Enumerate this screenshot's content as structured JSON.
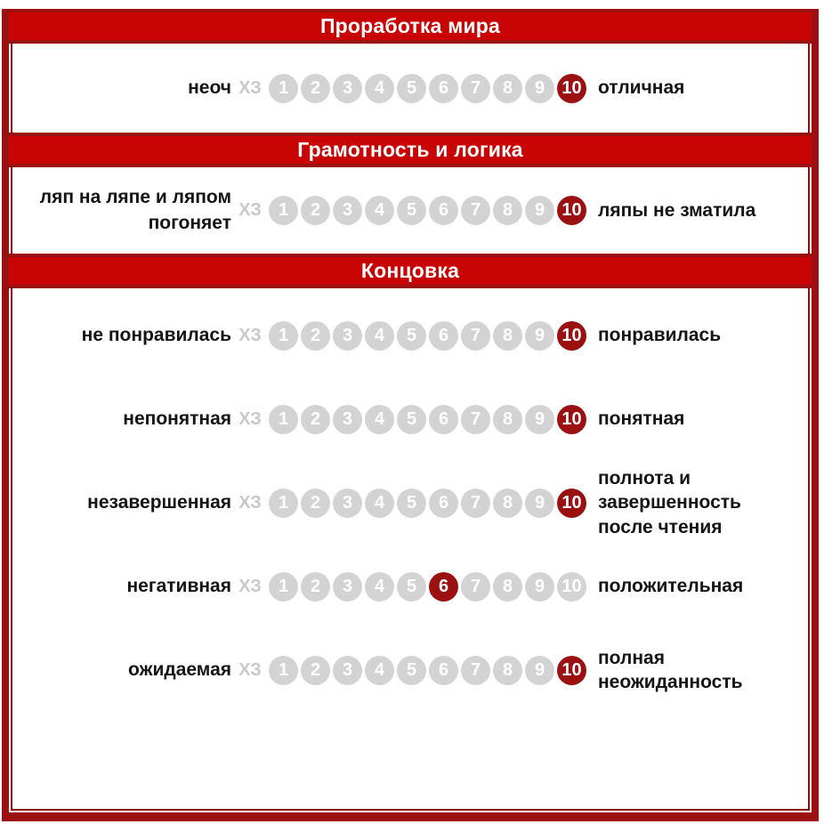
{
  "scale": {
    "unknown_label": "ХЗ",
    "values": [
      1,
      2,
      3,
      4,
      5,
      6,
      7,
      8,
      9,
      10
    ]
  },
  "colors": {
    "header_red": "#c90404",
    "frame_dark_red": "#9b1111",
    "selected_circle_red": "#9b1111",
    "circle_gray": "#d3d3d3",
    "unknown_gray": "#c9c9c9",
    "label_black": "#151515",
    "header_text_white": "#ffffff"
  },
  "sections": [
    {
      "title": "Проработка мира",
      "rows": [
        {
          "left_label": "неоч",
          "right_label": "отличная",
          "selected": 10
        }
      ]
    },
    {
      "title": "Грамотность и логика",
      "rows": [
        {
          "left_label": "ляп на ляпе и ляпом погоняет",
          "right_label": "ляпы не зматила",
          "selected": 10
        }
      ]
    },
    {
      "title": "Концовка",
      "rows": [
        {
          "left_label": "не понравилась",
          "right_label": "понравилась",
          "selected": 10
        },
        {
          "left_label": "непонятная",
          "right_label": "понятная",
          "selected": 10
        },
        {
          "left_label": "незавершенная",
          "right_label": "полнота и завершенность после чтения",
          "selected": 10
        },
        {
          "left_label": "негативная",
          "right_label": "положительная",
          "selected": 6
        },
        {
          "left_label": "ожидаемая",
          "right_label": "полная неожиданность",
          "selected": 10
        }
      ]
    }
  ]
}
